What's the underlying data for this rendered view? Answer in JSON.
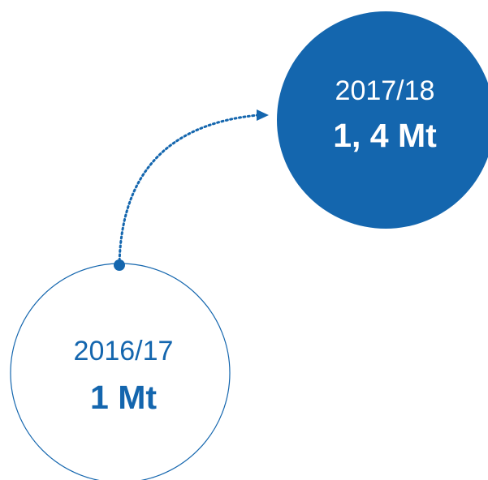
{
  "nodes": [
    {
      "year": "2017/18",
      "value": "1, 4 Mt"
    },
    {
      "year": "2016/17",
      "value": "1 Mt"
    }
  ]
}
